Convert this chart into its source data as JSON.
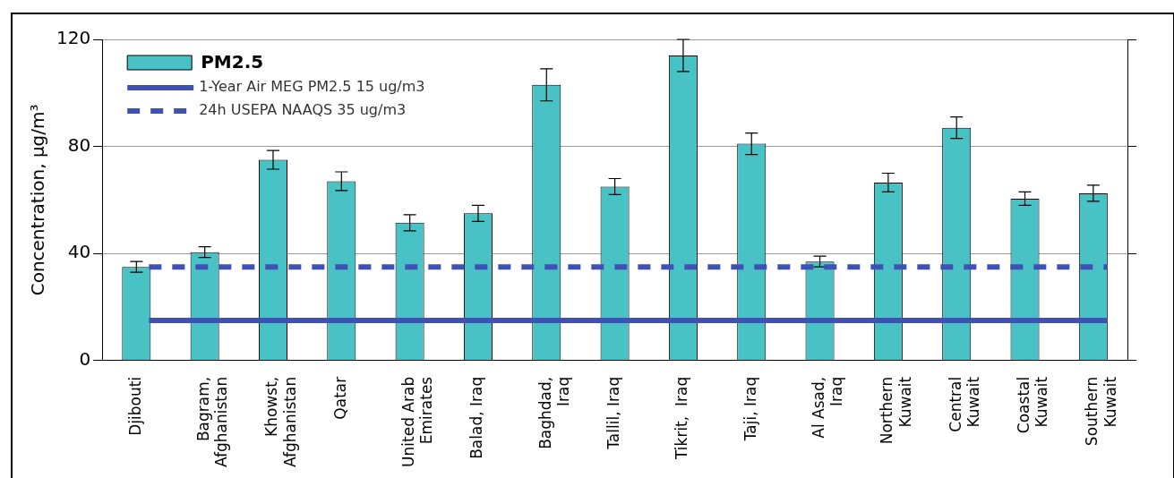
{
  "chart_data": {
    "type": "bar",
    "ylabel": "Concentration, μg/m³",
    "categories": [
      "Djibouti",
      "Bagram,\nAfghanistan",
      "Khowst,\nAfghanistan",
      "Qatar",
      "United Arab\nEmirates",
      "Balad, Iraq",
      "Baghdad,\nIraq",
      "Tallil, Iraq",
      "Tikrit,  Iraq",
      "Taji, Iraq",
      "Al Asad,\nIraq",
      "Northern\nKuwait",
      "Central\nKuwait",
      "Coastal\nKuwait",
      "Southern\nKuwait"
    ],
    "series": [
      {
        "name": "PM2.5",
        "color": "#48c2c5",
        "values": [
          35,
          40.5,
          75,
          67,
          51.5,
          55,
          103,
          65,
          114,
          81,
          37,
          66.5,
          87,
          60.5,
          62.5
        ],
        "errors": [
          2,
          2,
          3.5,
          3.5,
          3,
          3,
          6,
          3,
          6,
          4,
          2,
          3.5,
          4,
          2.5,
          3
        ]
      }
    ],
    "ref_lines": [
      {
        "axis": "y",
        "value": 15,
        "label": "1-Year Air MEG PM2.5 15 ug/m3",
        "color": "#3f51b5",
        "line_style": "solid"
      },
      {
        "axis": "y",
        "value": 35,
        "label": "24h USEPA NAAQS 35 ug/m3",
        "color": "#3f51b5",
        "line_style": "dashed"
      }
    ],
    "ylim": [
      0,
      120
    ],
    "yticks": [
      0,
      40,
      80,
      120
    ],
    "grid": "y",
    "legend": "top left"
  }
}
